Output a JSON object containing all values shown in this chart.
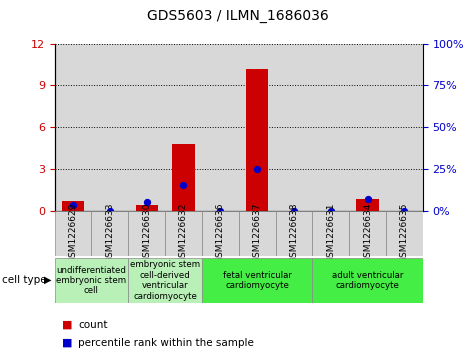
{
  "title": "GDS5603 / ILMN_1686036",
  "samples": [
    "GSM1226629",
    "GSM1226633",
    "GSM1226630",
    "GSM1226632",
    "GSM1226636",
    "GSM1226637",
    "GSM1226638",
    "GSM1226631",
    "GSM1226634",
    "GSM1226635"
  ],
  "counts": [
    0.7,
    0.0,
    0.4,
    4.8,
    0.0,
    10.2,
    0.0,
    0.0,
    0.8,
    0.0
  ],
  "percentiles": [
    3.5,
    0.0,
    5.0,
    15.0,
    0.0,
    25.0,
    0.0,
    0.0,
    7.0,
    0.0
  ],
  "ylim_left": [
    0,
    12
  ],
  "ylim_right": [
    0,
    100
  ],
  "yticks_left": [
    0,
    3,
    6,
    9,
    12
  ],
  "yticks_right": [
    0,
    25,
    50,
    75,
    100
  ],
  "ytick_labels_right": [
    "0%",
    "25%",
    "50%",
    "75%",
    "100%"
  ],
  "bar_color": "#cc0000",
  "scatter_color": "#0000cc",
  "col_bg": "#d8d8d8",
  "cell_types": [
    {
      "label": "undifferentiated\nembryonic stem\ncell",
      "start": 0,
      "end": 2,
      "color": "#b8f0b8"
    },
    {
      "label": "embryonic stem\ncell-derived\nventricular\ncardiomyocyte",
      "start": 2,
      "end": 4,
      "color": "#b8f0b8"
    },
    {
      "label": "fetal ventricular\ncardiomyocyte",
      "start": 4,
      "end": 7,
      "color": "#44ee44"
    },
    {
      "label": "adult ventricular\ncardiomyocyte",
      "start": 7,
      "end": 10,
      "color": "#44ee44"
    }
  ],
  "legend_count_color": "#cc0000",
  "legend_pct_color": "#0000cc",
  "tick_label_color_left": "#cc0000",
  "tick_label_color_right": "#0000cc"
}
